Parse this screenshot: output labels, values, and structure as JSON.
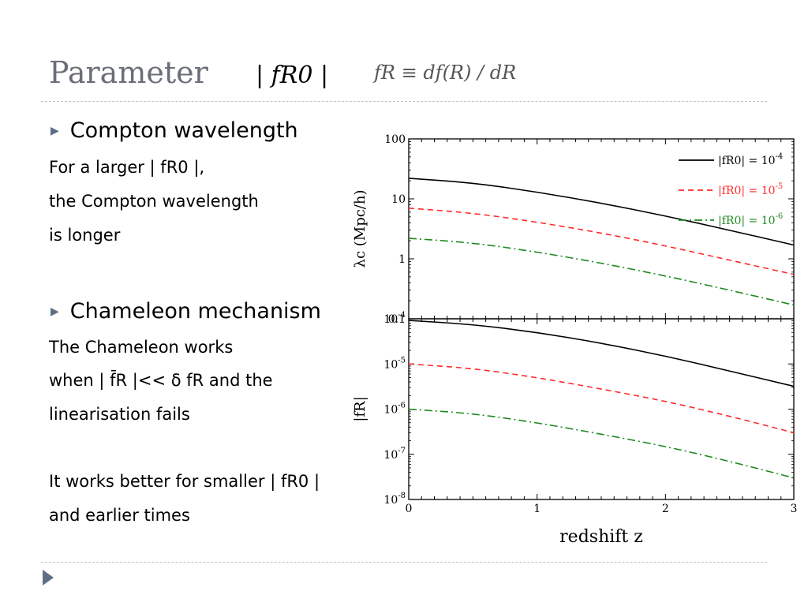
{
  "slide": {
    "title": "Parameter",
    "title_math": "| fR0 |",
    "definition": "fR ≡ df(R) / dR",
    "bullets": [
      {
        "heading": "Compton wavelength",
        "lines": [
          "For a  larger | fR0 |,",
          "the Compton wavelength",
          "is longer"
        ]
      },
      {
        "heading": "Chameleon mechanism",
        "lines": [
          "The Chameleon works",
          "when  | f̄R |<< δ fR   and the",
          "linearisation fails",
          "It works better for smaller  | fR0 |",
          "and earlier times"
        ]
      }
    ]
  },
  "chart_data": [
    {
      "type": "line",
      "ylabel": "λc (Mpc/h)",
      "yscale": "log",
      "ylim": [
        0.1,
        100
      ],
      "yticks": [
        "100",
        "10",
        "1",
        "0.1"
      ],
      "xlim": [
        0,
        3
      ],
      "legend": "top-right",
      "series": [
        {
          "name": "|fR0| = 10^-4",
          "color": "#000000",
          "style": "solid",
          "x": [
            0,
            0.5,
            1.0,
            1.5,
            2.0,
            2.5,
            3.0
          ],
          "y": [
            22.0,
            18.5,
            13.0,
            8.5,
            5.2,
            3.0,
            1.7
          ]
        },
        {
          "name": "|fR0| = 10^-5",
          "color": "#ff2a2a",
          "style": "dashed",
          "x": [
            0,
            0.5,
            1.0,
            1.5,
            2.0,
            2.5,
            3.0
          ],
          "y": [
            7.0,
            5.8,
            4.1,
            2.7,
            1.65,
            0.95,
            0.55
          ]
        },
        {
          "name": "|fR0| = 10^-6",
          "color": "#1f8a1f",
          "style": "dashdot",
          "x": [
            0,
            0.5,
            1.0,
            1.5,
            2.0,
            2.5,
            3.0
          ],
          "y": [
            2.2,
            1.85,
            1.3,
            0.85,
            0.52,
            0.3,
            0.17
          ]
        }
      ]
    },
    {
      "type": "line",
      "xlabel": "redshift z",
      "ylabel": "|fR|",
      "yscale": "log",
      "ylim": [
        1e-08,
        0.0001
      ],
      "yticks": [
        "10^-4",
        "10^-5",
        "10^-6",
        "10^-7",
        "10^-8"
      ],
      "xlim": [
        0,
        3
      ],
      "xticks": [
        "0",
        "1",
        "2",
        "3"
      ],
      "series": [
        {
          "color": "#000000",
          "style": "solid",
          "x": [
            0,
            0.5,
            1.0,
            1.5,
            2.0,
            2.5,
            3.0
          ],
          "y": [
            9.2e-05,
            7.5e-05,
            5e-05,
            2.9e-05,
            1.5e-05,
            7e-06,
            3.2e-06
          ]
        },
        {
          "color": "#ff2a2a",
          "style": "dashed",
          "x": [
            0,
            0.5,
            1.0,
            1.5,
            2.0,
            2.5,
            3.0
          ],
          "y": [
            1e-05,
            8e-06,
            5e-06,
            2.8e-06,
            1.5e-06,
            7e-07,
            3e-07
          ]
        },
        {
          "color": "#1f8a1f",
          "style": "dashdot",
          "x": [
            0,
            0.5,
            1.0,
            1.5,
            2.0,
            2.5,
            3.0
          ],
          "y": [
            1e-06,
            8e-07,
            5e-07,
            2.8e-07,
            1.5e-07,
            7e-08,
            3e-08
          ]
        }
      ]
    }
  ]
}
